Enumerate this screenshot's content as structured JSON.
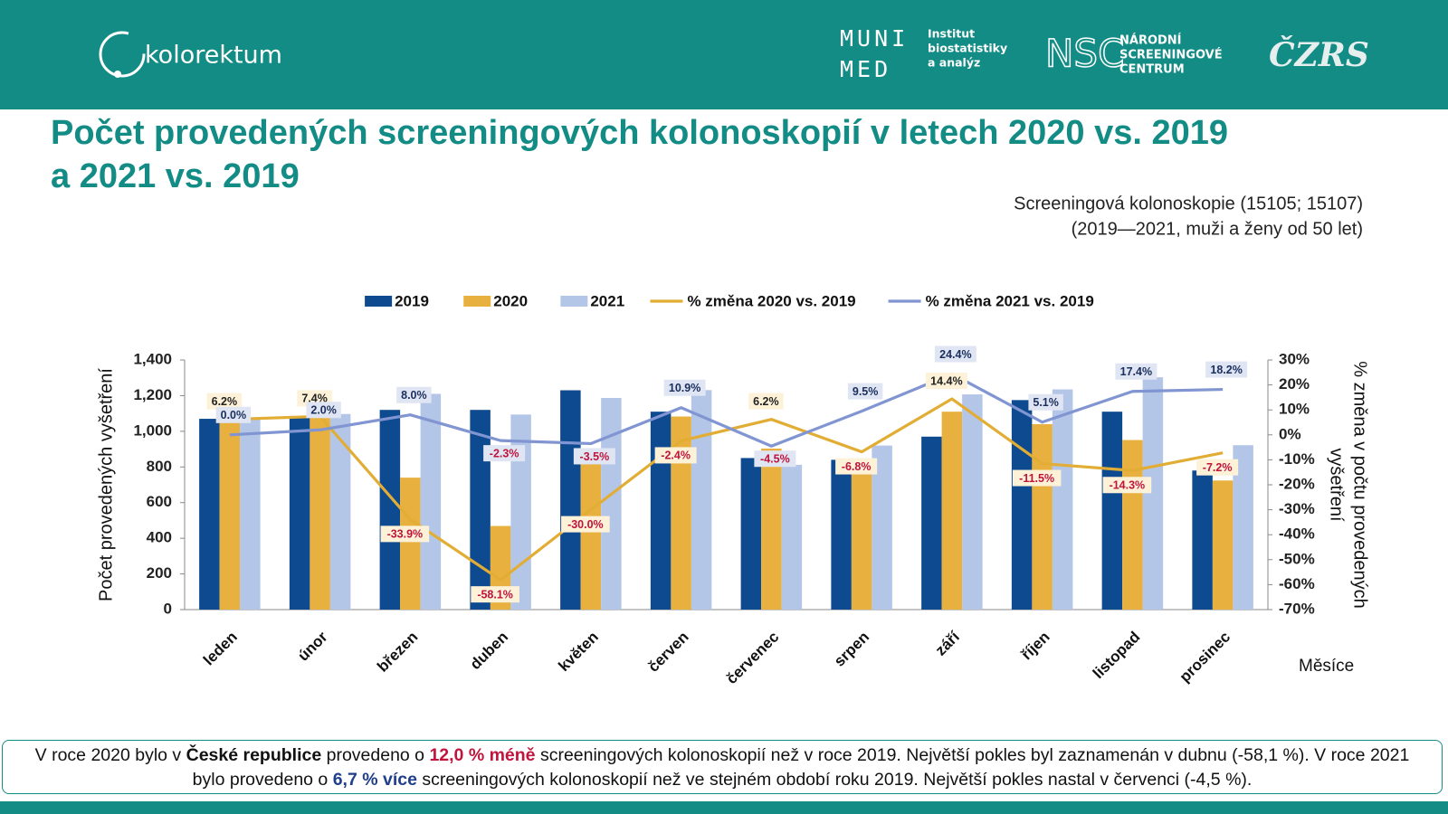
{
  "header": {
    "brand": "kolorektum",
    "muni_top": "MUNI",
    "muni_bottom": "MED",
    "institute_lines": [
      "Institut",
      "biostatistiky",
      "a analýz"
    ],
    "nsc": "NSC",
    "nsc_lines": [
      "NÁRODNÍ",
      "SCREENINGOVÉ",
      "CENTRUM"
    ],
    "czrs": "ČZRS"
  },
  "chart_data": {
    "type": "bar",
    "title_lines": [
      "Počet provedených screeningových kolonoskopií v letech 2020 vs. 2019",
      "a 2021 vs. 2019"
    ],
    "subtitle_lines": [
      "Screeningová kolonoskopie (15105; 15107)",
      "(2019—2021, muži a ženy od 50 let)"
    ],
    "ylabel": "Počet provedených vyšetření",
    "y2label_lines": [
      "% změna v počtu provedených",
      "vyšetření"
    ],
    "xlabel": "Měsíce",
    "categories": [
      "leden",
      "únor",
      "březen",
      "duben",
      "květen",
      "červen",
      "červenec",
      "srpen",
      "září",
      "říjen",
      "listopad",
      "prosinec"
    ],
    "series": [
      {
        "name": "2019",
        "color": "#0e4a8f",
        "values": [
          1070,
          1075,
          1120,
          1120,
          1230,
          1110,
          850,
          840,
          970,
          1175,
          1110,
          780
        ]
      },
      {
        "name": "2020",
        "color": "#e8b03e",
        "values": [
          1136,
          1155,
          740,
          469,
          861,
          1083,
          903,
          783,
          1110,
          1040,
          951,
          724
        ]
      },
      {
        "name": "2021",
        "color": "#b4c6e7",
        "values": [
          1070,
          1097,
          1210,
          1094,
          1187,
          1231,
          812,
          920,
          1207,
          1235,
          1303,
          922
        ]
      },
      {
        "name": "% změna 2020 vs. 2019",
        "type": "line",
        "axis": "y2",
        "color": "#e2ad35",
        "values": [
          6.2,
          7.4,
          -33.9,
          -58.1,
          -30.0,
          -2.4,
          6.2,
          -6.8,
          14.4,
          -11.5,
          -14.3,
          -7.2
        ],
        "value_labels": [
          "6.2%",
          "7.4%",
          "-33.9%",
          "-58.1%",
          "-30.0%",
          "-2.4%",
          "6.2%",
          "-6.8%",
          "14.4%",
          "-11.5%",
          "-14.3%",
          "-7.2%"
        ]
      },
      {
        "name": "% změna 2021 vs. 2019",
        "type": "line",
        "axis": "y2",
        "color": "#8095d1",
        "values": [
          0.0,
          2.0,
          8.0,
          -2.3,
          -3.5,
          10.9,
          -4.5,
          9.5,
          24.4,
          5.1,
          17.4,
          18.2
        ],
        "value_labels": [
          "0.0%",
          "2.0%",
          "8.0%",
          "-2.3%",
          "-3.5%",
          "10.9%",
          "-4.5%",
          "9.5%",
          "24.4%",
          "5.1%",
          "17.4%",
          "18.2%"
        ]
      }
    ],
    "ylim": [
      0,
      1400
    ],
    "yticks": [
      0,
      200,
      400,
      600,
      800,
      {
        "value": 1000,
        "label": "1,000"
      },
      {
        "value": 1200,
        "label": "1,200"
      },
      {
        "value": 1400,
        "label": "1,400"
      }
    ],
    "y2lim": [
      -70,
      30
    ],
    "y2ticks": [
      {
        "value": -70,
        "label": "-70%"
      },
      {
        "value": -60,
        "label": "-60%"
      },
      {
        "value": -50,
        "label": "-50%"
      },
      {
        "value": -40,
        "label": "-40%"
      },
      {
        "value": -30,
        "label": "-30%"
      },
      {
        "value": -20,
        "label": "-20%"
      },
      {
        "value": -10,
        "label": "-10%"
      },
      {
        "value": 0,
        "label": "0%"
      },
      {
        "value": 10,
        "label": "10%"
      },
      {
        "value": 20,
        "label": "20%"
      },
      {
        "value": 30,
        "label": "30%"
      }
    ],
    "legend": "top",
    "grid": false
  },
  "footer": {
    "parts": [
      "V roce 2020 bylo v ",
      "České republice",
      " provedeno o ",
      "12,0 % méně",
      " screeningových kolonoskopií než v roce 2019. Největší pokles byl zaznamenán v dubnu (-58,1 %). V roce 2021 bylo provedeno o ",
      "6,7 % více",
      " screeningových kolonoskopií než ve stejném období roku 2019. Největší pokles nastal  v červenci (-4,5 %)."
    ]
  }
}
